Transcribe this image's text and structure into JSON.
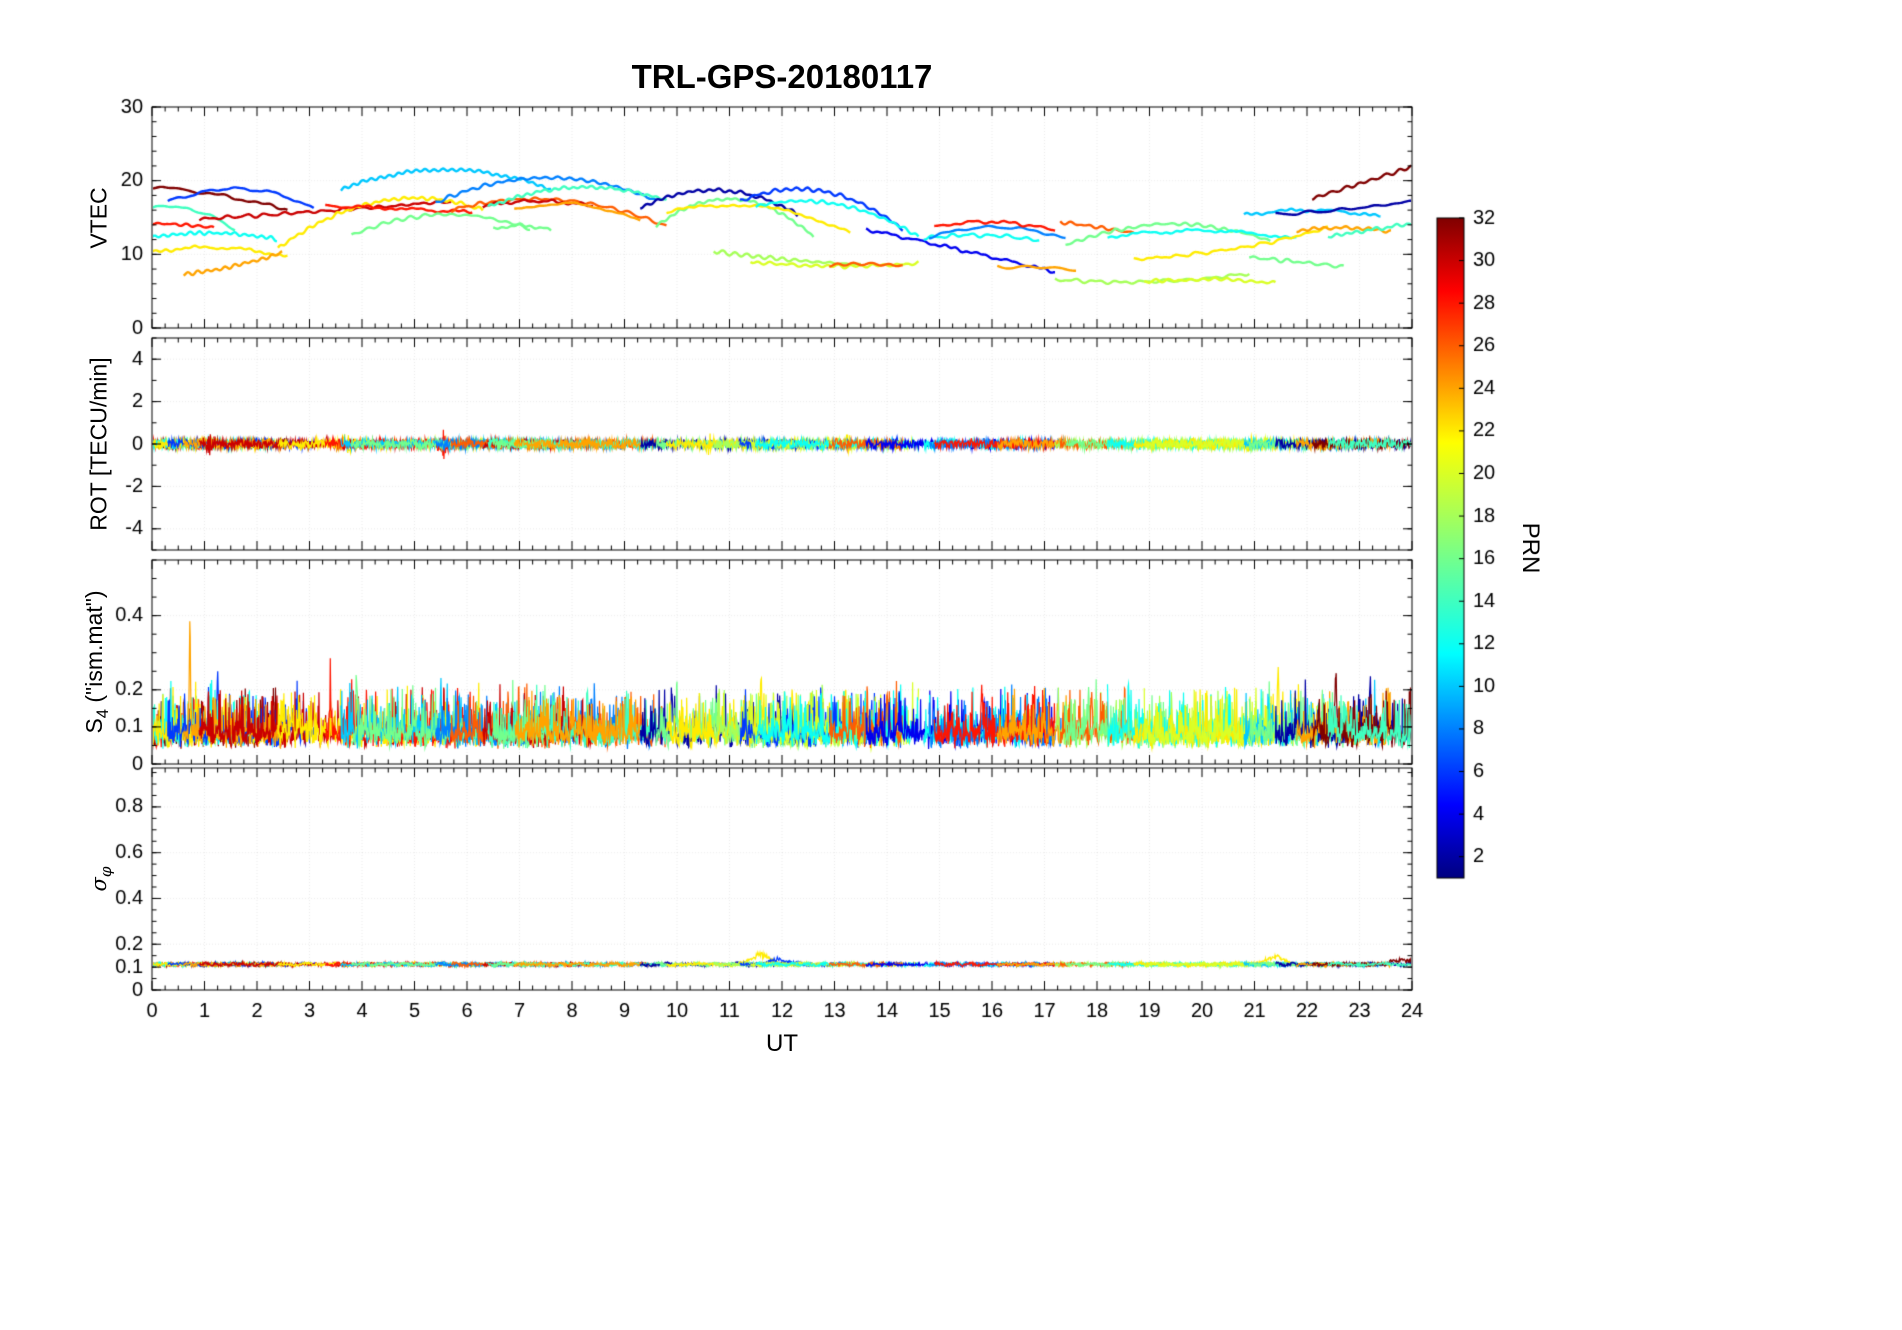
{
  "title": "TRL-GPS-20180117",
  "xlabel": "UT",
  "labels": {
    "ylabel_vtec": "VTEC",
    "ylabel_rot": "ROT [TECU/min]",
    "ylabel_s4_main": "S",
    "ylabel_s4_sub": "4",
    "ylabel_s4_rest": " (\"ism.mat\")",
    "ylabel_sigma_main": "σ",
    "ylabel_sigma_sub": "φ",
    "colorbar_label": "PRN"
  },
  "axes": {
    "x": {
      "min": 0,
      "max": 24,
      "major_ticks": [
        0,
        1,
        2,
        3,
        4,
        5,
        6,
        7,
        8,
        9,
        10,
        11,
        12,
        13,
        14,
        15,
        16,
        17,
        18,
        19,
        20,
        21,
        22,
        23,
        24
      ],
      "minor_step": 0.25
    }
  },
  "colorbar": {
    "label": "PRN",
    "min": 1,
    "max": 32,
    "ticks": [
      2,
      4,
      6,
      8,
      10,
      12,
      14,
      16,
      18,
      20,
      22,
      24,
      26,
      28,
      30,
      32
    ],
    "colormap": {
      "positions": [
        0,
        0.11,
        0.34,
        0.5,
        0.66,
        0.89,
        1
      ],
      "colors": [
        "#000080",
        "#0000ff",
        "#00ffff",
        "#80ff80",
        "#ffff00",
        "#ff0000",
        "#800000"
      ]
    }
  },
  "panels": [
    {
      "id": "vtec",
      "ylabel": "VTEC",
      "ylim": [
        0,
        30
      ],
      "yticks": [
        0,
        10,
        20,
        30
      ],
      "y_minor_step": 2
    },
    {
      "id": "rot",
      "ylabel": "ROT [TECU/min]",
      "ylim": [
        -5,
        5
      ],
      "yticks": [
        -4,
        -2,
        0,
        2,
        4
      ],
      "y_minor_step": 1
    },
    {
      "id": "s4",
      "ylabel": "S4 (\"ism.mat\")",
      "ylim": [
        0,
        0.55
      ],
      "yticks": [
        0,
        0.1,
        0.2,
        0.4
      ],
      "y_minor_step": 0.05
    },
    {
      "id": "sigma_phi",
      "ylabel": "sigma_phi",
      "ylim": [
        0,
        0.97
      ],
      "yticks": [
        0,
        0.1,
        0.2,
        0.4,
        0.6,
        0.8
      ],
      "y_minor_step": 0.05
    }
  ],
  "chart_data": {
    "type": "line",
    "x_unit": "UT hours",
    "x_range": [
      0,
      24
    ],
    "vtec_arcs": [
      {
        "p": 32,
        "t0": 0.0,
        "t1": 2.6,
        "v0": 19.2,
        "vm": 18.0,
        "v1": 16.0
      },
      {
        "p": 28,
        "t0": 0.0,
        "t1": 1.2,
        "v0": 14.2,
        "vm": 14.0,
        "v1": 13.6
      },
      {
        "p": 14,
        "t0": 0.0,
        "t1": 1.6,
        "v0": 16.3,
        "vm": 16.0,
        "v1": 13.2
      },
      {
        "p": 12,
        "t0": 0.0,
        "t1": 2.4,
        "v0": 12.3,
        "vm": 12.9,
        "v1": 12.0
      },
      {
        "p": 22,
        "t0": 0.0,
        "t1": 2.6,
        "v0": 10.3,
        "vm": 10.9,
        "v1": 9.6
      },
      {
        "p": 6,
        "t0": 0.3,
        "t1": 3.1,
        "v0": 17.0,
        "vm": 18.9,
        "v1": 16.2
      },
      {
        "p": 24,
        "t0": 0.6,
        "t1": 2.5,
        "v0": 7.3,
        "vm": 8.4,
        "v1": 10.3
      },
      {
        "p": 30,
        "t0": 0.9,
        "t1": 5.7,
        "v0": 14.8,
        "vm": 15.9,
        "v1": 17.2
      },
      {
        "p": 22,
        "t0": 2.4,
        "t1": 6.3,
        "v0": 10.8,
        "vm": 17.2,
        "v1": 16.0
      },
      {
        "p": 28,
        "t0": 3.3,
        "t1": 6.1,
        "v0": 16.6,
        "vm": 16.2,
        "v1": 15.7
      },
      {
        "p": 10,
        "t0": 3.6,
        "t1": 7.6,
        "v0": 18.8,
        "vm": 21.5,
        "v1": 18.8
      },
      {
        "p": 16,
        "t0": 3.8,
        "t1": 7.2,
        "v0": 12.6,
        "vm": 15.4,
        "v1": 13.4
      },
      {
        "p": 8,
        "t0": 5.4,
        "t1": 9.6,
        "v0": 17.0,
        "vm": 20.4,
        "v1": 17.3
      },
      {
        "p": 26,
        "t0": 5.7,
        "t1": 9.8,
        "v0": 16.0,
        "vm": 17.4,
        "v1": 13.8
      },
      {
        "p": 30,
        "t0": 6.3,
        "t1": 8.4,
        "v0": 16.6,
        "vm": 17.2,
        "v1": 16.6
      },
      {
        "p": 14,
        "t0": 6.4,
        "t1": 9.8,
        "v0": 16.4,
        "vm": 19.1,
        "v1": 17.3
      },
      {
        "p": 16,
        "t0": 6.5,
        "t1": 7.6,
        "v0": 13.4,
        "vm": 13.9,
        "v1": 13.2
      },
      {
        "p": 24,
        "t0": 6.9,
        "t1": 9.3,
        "v0": 16.2,
        "vm": 16.7,
        "v1": 14.6
      },
      {
        "p": 2,
        "t0": 9.3,
        "t1": 12.3,
        "v0": 16.3,
        "vm": 18.7,
        "v1": 15.4
      },
      {
        "p": 16,
        "t0": 9.6,
        "t1": 12.6,
        "v0": 13.8,
        "vm": 17.5,
        "v1": 12.4
      },
      {
        "p": 22,
        "t0": 9.8,
        "t1": 13.3,
        "v0": 15.6,
        "vm": 16.5,
        "v1": 12.9
      },
      {
        "p": 18,
        "t0": 10.7,
        "t1": 13.5,
        "v0": 10.4,
        "vm": 9.3,
        "v1": 8.6
      },
      {
        "p": 6,
        "t0": 11.2,
        "t1": 14.3,
        "v0": 17.2,
        "vm": 18.6,
        "v1": 13.4
      },
      {
        "p": 20,
        "t0": 11.4,
        "t1": 14.6,
        "v0": 9.0,
        "vm": 8.4,
        "v1": 8.8
      },
      {
        "p": 12,
        "t0": 11.5,
        "t1": 14.6,
        "v0": 16.5,
        "vm": 16.8,
        "v1": 12.4
      },
      {
        "p": 26,
        "t0": 12.9,
        "t1": 14.3,
        "v0": 8.5,
        "vm": 8.7,
        "v1": 8.4
      },
      {
        "p": 4,
        "t0": 13.6,
        "t1": 17.2,
        "v0": 13.4,
        "vm": 10.6,
        "v1": 7.6
      },
      {
        "p": 12,
        "t0": 14.7,
        "t1": 16.9,
        "v0": 12.2,
        "vm": 12.6,
        "v1": 11.9
      },
      {
        "p": 8,
        "t0": 14.8,
        "t1": 17.4,
        "v0": 12.3,
        "vm": 13.7,
        "v1": 12.1
      },
      {
        "p": 28,
        "t0": 14.9,
        "t1": 17.2,
        "v0": 13.7,
        "vm": 14.4,
        "v1": 13.2
      },
      {
        "p": 24,
        "t0": 16.1,
        "t1": 17.6,
        "v0": 8.4,
        "vm": 8.2,
        "v1": 8.0
      },
      {
        "p": 18,
        "t0": 17.2,
        "t1": 20.9,
        "v0": 6.6,
        "vm": 6.3,
        "v1": 7.4
      },
      {
        "p": 26,
        "t0": 17.3,
        "t1": 18.7,
        "v0": 14.4,
        "vm": 13.7,
        "v1": 12.9
      },
      {
        "p": 16,
        "t0": 17.4,
        "t1": 21.3,
        "v0": 11.2,
        "vm": 14.1,
        "v1": 11.8
      },
      {
        "p": 12,
        "t0": 18.2,
        "t1": 21.8,
        "v0": 12.3,
        "vm": 13.2,
        "v1": 12.1
      },
      {
        "p": 22,
        "t0": 18.7,
        "t1": 22.4,
        "v0": 9.4,
        "vm": 10.7,
        "v1": 13.6
      },
      {
        "p": 20,
        "t0": 18.9,
        "t1": 21.4,
        "v0": 6.2,
        "vm": 6.6,
        "v1": 6.1
      },
      {
        "p": 10,
        "t0": 20.8,
        "t1": 23.4,
        "v0": 15.3,
        "vm": 16.0,
        "v1": 15.1
      },
      {
        "p": 16,
        "t0": 20.9,
        "t1": 22.7,
        "v0": 9.6,
        "vm": 9.0,
        "v1": 8.3
      },
      {
        "p": 2,
        "t0": 21.4,
        "t1": 24.0,
        "v0": 15.4,
        "vm": 16.1,
        "v1": 17.2
      },
      {
        "p": 24,
        "t0": 21.8,
        "t1": 23.6,
        "v0": 13.2,
        "vm": 13.6,
        "v1": 13.1
      },
      {
        "p": 32,
        "t0": 22.1,
        "t1": 24.0,
        "v0": 17.6,
        "vm": 19.7,
        "v1": 21.9
      },
      {
        "p": 14,
        "t0": 22.4,
        "t1": 24.0,
        "v0": 12.4,
        "vm": 13.3,
        "v1": 14.2
      }
    ],
    "rot": {
      "band_amplitude": 0.3,
      "bursts": [
        {
          "t": 1.1,
          "prn": 30,
          "amp": 0.5
        },
        {
          "t": 3.7,
          "prn": 22,
          "amp": 0.45
        },
        {
          "t": 5.5,
          "prn": 28,
          "amp": 0.85
        },
        {
          "t": 10.6,
          "prn": 22,
          "amp": 0.4
        },
        {
          "t": 13.3,
          "prn": 22,
          "amp": 0.45
        },
        {
          "t": 20.9,
          "prn": 22,
          "amp": 0.35
        }
      ]
    },
    "s4": {
      "baseline": 0.05,
      "band_top": 0.15,
      "spikes": [
        {
          "t": 0.72,
          "prn": 24,
          "amp": 0.29
        },
        {
          "t": 1.25,
          "prn": 6,
          "amp": 0.17
        },
        {
          "t": 2.1,
          "prn": 32,
          "amp": 0.12
        },
        {
          "t": 3.4,
          "prn": 28,
          "amp": 0.14
        },
        {
          "t": 3.9,
          "prn": 16,
          "amp": 0.19
        },
        {
          "t": 5.5,
          "prn": 10,
          "amp": 0.12
        },
        {
          "t": 8.3,
          "prn": 14,
          "amp": 0.12
        },
        {
          "t": 9.9,
          "prn": 2,
          "amp": 0.13
        },
        {
          "t": 11.6,
          "prn": 22,
          "amp": 0.16
        },
        {
          "t": 12.2,
          "prn": 22,
          "amp": 0.15
        },
        {
          "t": 14.0,
          "prn": 26,
          "amp": 0.13
        },
        {
          "t": 15.8,
          "prn": 28,
          "amp": 0.14
        },
        {
          "t": 17.9,
          "prn": 26,
          "amp": 0.13
        },
        {
          "t": 18.6,
          "prn": 12,
          "amp": 0.13
        },
        {
          "t": 21.45,
          "prn": 22,
          "amp": 0.24
        },
        {
          "t": 22.55,
          "prn": 32,
          "amp": 0.15
        },
        {
          "t": 23.2,
          "prn": 2,
          "amp": 0.16
        },
        {
          "t": 23.3,
          "prn": 10,
          "amp": 0.12
        }
      ]
    },
    "sigma_phi": {
      "baseline": 0.112,
      "bumps": [
        {
          "t": 11.6,
          "prn": 22,
          "amp": 0.05
        },
        {
          "t": 11.9,
          "prn": 6,
          "amp": 0.025
        },
        {
          "t": 21.4,
          "prn": 22,
          "amp": 0.04
        },
        {
          "t": 23.8,
          "prn": 32,
          "amp": 0.025
        }
      ]
    }
  }
}
